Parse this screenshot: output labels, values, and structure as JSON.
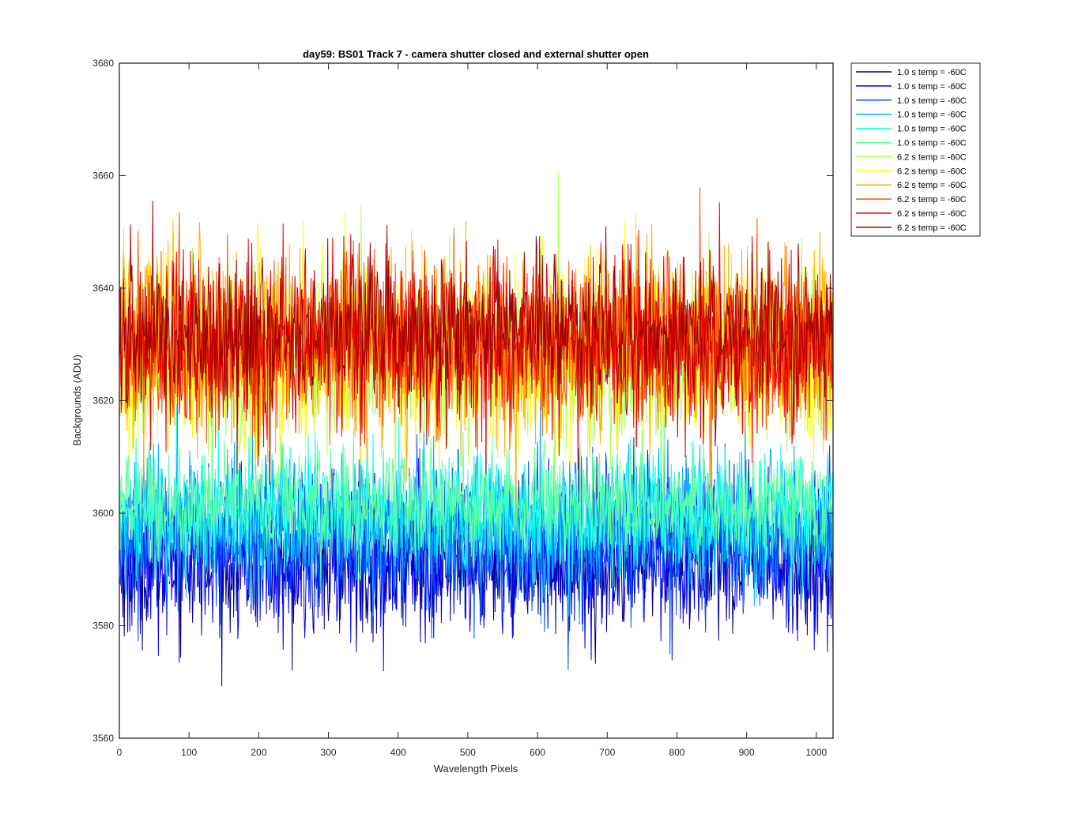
{
  "chart_data": {
    "type": "line",
    "title": "day59: BS01  Track 7 - camera shutter closed and external shutter open",
    "xlabel": "Wavelength Pixels",
    "ylabel": "Backgrounds (ADU)",
    "xlim": [
      0,
      1024
    ],
    "ylim": [
      3560,
      3680
    ],
    "xticks": [
      "0",
      "100",
      "200",
      "300",
      "400",
      "500",
      "600",
      "700",
      "800",
      "900",
      "1000"
    ],
    "yticks": [
      "3560",
      "3580",
      "3600",
      "3620",
      "3640",
      "3660",
      "3680"
    ],
    "grid": false,
    "legend_position": "outside-right-top",
    "series": [
      {
        "name": "1.0 s temp = -60C",
        "color": "#00008f",
        "mean": 3592,
        "noise": 6.5,
        "x_range": [
          1,
          1024
        ]
      },
      {
        "name": "1.0 s temp = -60C",
        "color": "#0000ef",
        "mean": 3592,
        "noise": 6.5,
        "x_range": [
          1,
          1024
        ]
      },
      {
        "name": "1.0 s temp = -60C",
        "color": "#0050ff",
        "mean": 3596,
        "noise": 6.0,
        "x_range": [
          1,
          1024
        ]
      },
      {
        "name": "1.0 s temp = -60C",
        "color": "#00b0ff",
        "mean": 3598,
        "noise": 6.0,
        "x_range": [
          1,
          1024
        ]
      },
      {
        "name": "1.0 s temp = -60C",
        "color": "#10ffef",
        "mean": 3600,
        "noise": 5.5,
        "x_range": [
          1,
          1024
        ]
      },
      {
        "name": "1.0 s temp = -60C",
        "color": "#60ff9f",
        "mean": 3602,
        "noise": 5.0,
        "x_range": [
          1,
          1024
        ]
      },
      {
        "name": "6.2 s temp = -60C",
        "color": "#afff50",
        "mean": 3628,
        "noise": 8.0,
        "x_range": [
          1,
          1024
        ]
      },
      {
        "name": "6.2 s temp = -60C",
        "color": "#ffff00",
        "mean": 3628,
        "noise": 8.0,
        "x_range": [
          1,
          1024
        ]
      },
      {
        "name": "6.2 s temp = -60C",
        "color": "#ffaf00",
        "mean": 3630,
        "noise": 8.0,
        "x_range": [
          1,
          1024
        ]
      },
      {
        "name": "6.2 s temp = -60C",
        "color": "#ff5000",
        "mean": 3630,
        "noise": 7.5,
        "x_range": [
          1,
          1024
        ]
      },
      {
        "name": "6.2 s temp = -60C",
        "color": "#ef0000",
        "mean": 3630,
        "noise": 7.5,
        "x_range": [
          1,
          1024
        ]
      },
      {
        "name": "6.2 s temp = -60C",
        "color": "#9f0000",
        "mean": 3632,
        "noise": 7.0,
        "x_range": [
          1,
          1024
        ]
      }
    ]
  }
}
